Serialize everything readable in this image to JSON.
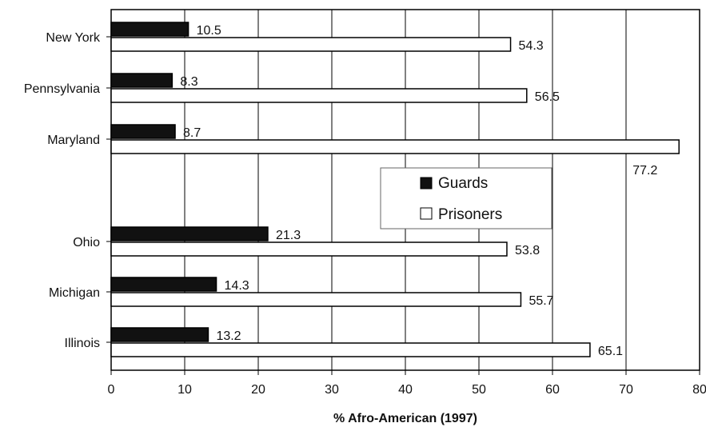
{
  "chart_data": {
    "type": "bar",
    "orientation": "horizontal",
    "categories": [
      "New York",
      "Pennsylvania",
      "Maryland",
      "Ohio",
      "Michigan",
      "Illinois"
    ],
    "series": [
      {
        "name": "Guards",
        "color": "#111111",
        "values": [
          10.5,
          8.3,
          8.7,
          21.3,
          14.3,
          13.2
        ]
      },
      {
        "name": "Prisoners",
        "color": "#ffffff",
        "values": [
          54.3,
          56.5,
          77.2,
          53.8,
          55.7,
          65.1
        ]
      }
    ],
    "title": "",
    "xlabel": "% Afro-American (1997)",
    "ylabel": "",
    "xlim": [
      0,
      80
    ],
    "xticks": [
      0,
      10,
      20,
      30,
      40,
      50,
      60,
      70,
      80
    ],
    "grid": true,
    "legend_position": "center-right",
    "data_label_texts": [
      [
        "10.5",
        "8.3",
        "8.7",
        "21.3",
        "14.3",
        "13.2"
      ],
      [
        "54.3",
        "56.5",
        "77.2",
        "53.8",
        "55.7",
        "65.1"
      ]
    ]
  }
}
